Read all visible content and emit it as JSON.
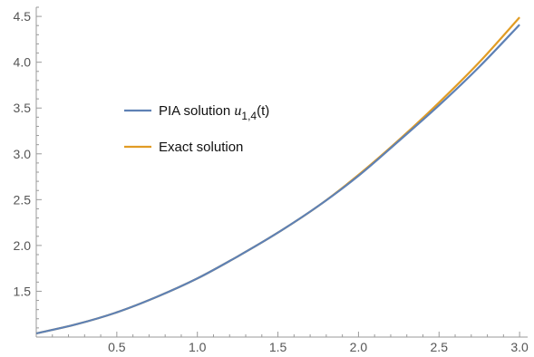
{
  "chart_data": {
    "type": "line",
    "title": "",
    "xlabel": "",
    "ylabel": "",
    "xlim": [
      0,
      3.05
    ],
    "ylim": [
      1.0,
      4.6
    ],
    "x_ticks": [
      0.5,
      1.0,
      1.5,
      2.0,
      2.5,
      3.0
    ],
    "x_tick_labels": [
      "0.5",
      "1.0",
      "1.5",
      "2.0",
      "2.5",
      "3.0"
    ],
    "y_ticks": [
      1.5,
      2.0,
      2.5,
      3.0,
      3.5,
      4.0,
      4.5
    ],
    "y_tick_labels": [
      "1.5",
      "2.0",
      "2.5",
      "3.0",
      "3.5",
      "4.0",
      "4.5"
    ],
    "x_minor_step": 0.1,
    "y_minor_step": 0.1,
    "grid": false,
    "legend_position": "top-left",
    "series": [
      {
        "name": "PIA solution",
        "name_var": "u",
        "name_sub": "1,4",
        "name_suffix": "(t)",
        "color": "#5e81b5",
        "x": [
          0.0,
          0.25,
          0.5,
          0.75,
          1.0,
          1.25,
          1.5,
          1.75,
          2.0,
          2.25,
          2.5,
          2.75,
          3.0
        ],
        "y": [
          1.04,
          1.14,
          1.27,
          1.44,
          1.64,
          1.88,
          2.14,
          2.43,
          2.76,
          3.14,
          3.53,
          3.95,
          4.41
        ]
      },
      {
        "name": "Exact solution",
        "color": "#e19c24",
        "x": [
          0.0,
          0.25,
          0.5,
          0.75,
          1.0,
          1.25,
          1.5,
          1.75,
          2.0,
          2.25,
          2.5,
          2.75,
          3.0
        ],
        "y": [
          1.04,
          1.14,
          1.27,
          1.44,
          1.64,
          1.88,
          2.14,
          2.43,
          2.77,
          3.15,
          3.56,
          4.0,
          4.49
        ]
      }
    ]
  }
}
